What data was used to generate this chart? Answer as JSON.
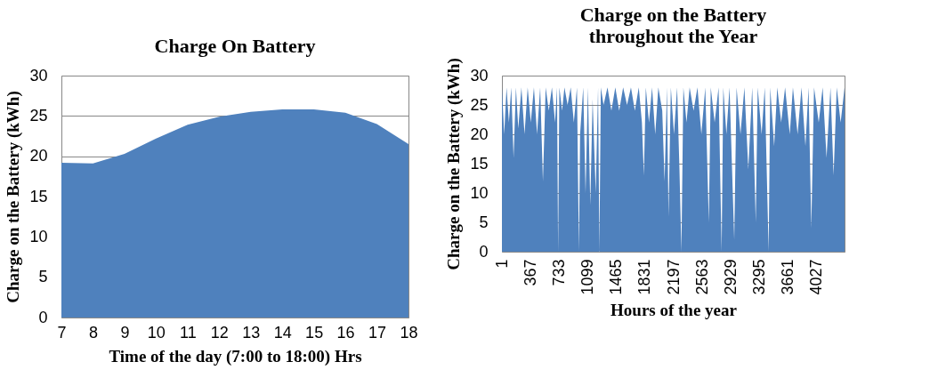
{
  "chart_data": [
    {
      "type": "area",
      "title": "Charge On Battery",
      "xlabel": "Time of the day (7:00 to 18:00) Hrs",
      "ylabel": "Charge on the Battery (kWh)",
      "x": [
        7,
        8,
        9,
        10,
        11,
        12,
        13,
        14,
        15,
        16,
        17,
        18
      ],
      "series": [
        {
          "color": "#4f81bd",
          "values": [
            19.2,
            19.1,
            20.3,
            22.2,
            23.9,
            24.9,
            25.5,
            25.8,
            25.8,
            25.4,
            24.0,
            21.5
          ]
        }
      ],
      "xlim": [
        7,
        18
      ],
      "xticks": [
        7,
        8,
        9,
        10,
        11,
        12,
        13,
        14,
        15,
        16,
        17,
        18
      ],
      "ylim": [
        0,
        30
      ],
      "yticks": [
        0,
        5,
        10,
        15,
        20,
        25,
        30
      ],
      "grid": "y"
    },
    {
      "type": "area",
      "title": "Charge on the Battery throughout the Year",
      "xlabel": "Hours of the year",
      "ylabel": "Charge on the Battery (kWh)",
      "x": [
        1,
        30,
        60,
        90,
        120,
        150,
        180,
        210,
        250,
        290,
        330,
        370,
        410,
        450,
        490,
        525,
        560,
        600,
        640,
        680,
        705,
        719,
        735,
        770,
        800,
        840,
        880,
        920,
        960,
        985,
        1000,
        1040,
        1070,
        1100,
        1130,
        1160,
        1200,
        1230,
        1247,
        1265,
        1300,
        1350,
        1400,
        1450,
        1500,
        1550,
        1600,
        1650,
        1700,
        1750,
        1790,
        1815,
        1840,
        1880,
        1920,
        1960,
        2000,
        2050,
        2080,
        2110,
        2130,
        2160,
        2200,
        2240,
        2270,
        2295,
        2320,
        2360,
        2400,
        2450,
        2500,
        2550,
        2600,
        2645,
        2670,
        2720,
        2770,
        2809,
        2830,
        2870,
        2910,
        2940,
        2970,
        3000,
        3050,
        3100,
        3150,
        3200,
        3245,
        3270,
        3320,
        3360,
        3410,
        3430,
        3480,
        3520,
        3570,
        3620,
        3680,
        3720,
        3780,
        3830,
        3880,
        3920,
        3955,
        3990,
        4050,
        4100,
        4150,
        4200,
        4240,
        4280,
        4330,
        4380
      ],
      "series": [
        {
          "color": "#4f81bd",
          "values": [
            28,
            20,
            28,
            22,
            28,
            16,
            28,
            21,
            28,
            20,
            28,
            22,
            28,
            20,
            28,
            12,
            28,
            24,
            28,
            22,
            28,
            0,
            28,
            24,
            28,
            25,
            28,
            22,
            28,
            0,
            20,
            28,
            10,
            28,
            8,
            26,
            10,
            28,
            0,
            28,
            25,
            28,
            24,
            28,
            24,
            28,
            25,
            28,
            24,
            28,
            22,
            13,
            28,
            22,
            28,
            20,
            28,
            24,
            12,
            28,
            6,
            28,
            20,
            28,
            14,
            0,
            28,
            22,
            28,
            24,
            28,
            20,
            28,
            5,
            28,
            22,
            28,
            0,
            28,
            20,
            28,
            15,
            2,
            28,
            20,
            28,
            14,
            28,
            5,
            28,
            20,
            28,
            0,
            28,
            18,
            28,
            22,
            28,
            20,
            28,
            20,
            28,
            18,
            28,
            4,
            28,
            22,
            28,
            16,
            28,
            13,
            28,
            22,
            28
          ]
        }
      ],
      "xlim": [
        1,
        4380
      ],
      "xticks": [
        1,
        367,
        733,
        1099,
        1465,
        1831,
        2197,
        2563,
        2929,
        3295,
        3661,
        4027
      ],
      "ylim": [
        0,
        30
      ],
      "yticks": [
        0,
        5,
        10,
        15,
        20,
        25,
        30
      ],
      "grid": "y"
    }
  ]
}
